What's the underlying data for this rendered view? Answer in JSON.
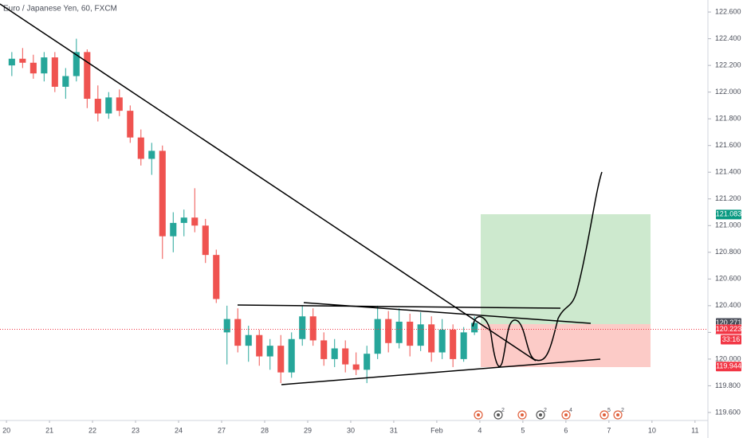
{
  "chart_data": {
    "type": "candlestick",
    "title": "Euro / Japanese Yen, 60, FXCM",
    "xlim": [
      -0.15,
      16.3
    ],
    "ylim": [
      119.54,
      122.69
    ],
    "xticks": [
      {
        "value": 0,
        "label": "20"
      },
      {
        "value": 1,
        "label": "21"
      },
      {
        "value": 2,
        "label": "22"
      },
      {
        "value": 3,
        "label": "23"
      },
      {
        "value": 4,
        "label": "24"
      },
      {
        "value": 5,
        "label": "27"
      },
      {
        "value": 6,
        "label": "28"
      },
      {
        "value": 7,
        "label": "29"
      },
      {
        "value": 8,
        "label": "30"
      },
      {
        "value": 9,
        "label": "31"
      },
      {
        "value": 10,
        "label": "Feb"
      },
      {
        "value": 11,
        "label": "4"
      },
      {
        "value": 12,
        "label": "5"
      },
      {
        "value": 13,
        "label": "6"
      },
      {
        "value": 14,
        "label": "7"
      },
      {
        "value": 15,
        "label": "10"
      },
      {
        "value": 16,
        "label": "11"
      }
    ],
    "yticks": [
      {
        "value": 119.6,
        "label": "119.600"
      },
      {
        "value": 119.8,
        "label": "119.800"
      },
      {
        "value": 120.0,
        "label": "120.000"
      },
      {
        "value": 120.2,
        "label": "120.200"
      },
      {
        "value": 120.4,
        "label": "120.400"
      },
      {
        "value": 120.6,
        "label": "120.600"
      },
      {
        "value": 120.8,
        "label": "120.800"
      },
      {
        "value": 121.0,
        "label": "121.000"
      },
      {
        "value": 121.2,
        "label": "121.200"
      },
      {
        "value": 121.4,
        "label": "121.400"
      },
      {
        "value": 121.6,
        "label": "121.600"
      },
      {
        "value": 121.8,
        "label": "121.800"
      },
      {
        "value": 122.0,
        "label": "122.000"
      },
      {
        "value": 122.2,
        "label": "122.200"
      },
      {
        "value": 122.4,
        "label": "122.400"
      },
      {
        "value": 122.6,
        "label": "122.600"
      }
    ],
    "up_color": "#26a69a",
    "down_color": "#ef5350",
    "x": [
      0.125,
      0.375,
      0.625,
      0.875,
      1.125,
      1.375,
      1.625,
      1.875,
      2.125,
      2.375,
      2.625,
      2.875,
      3.125,
      3.375,
      3.625,
      3.875,
      4.125,
      4.375,
      4.625,
      4.875,
      5.125,
      5.375,
      5.625,
      5.875,
      6.125,
      6.375,
      6.625,
      6.875,
      7.125,
      7.375,
      7.625,
      7.875,
      8.125,
      8.375,
      8.625,
      8.875,
      9.125,
      9.375,
      9.625,
      9.875,
      10.125,
      10.375,
      10.625,
      10.875
    ],
    "open": [
      122.2,
      122.25,
      122.22,
      122.14,
      122.26,
      122.04,
      122.12,
      122.3,
      121.95,
      121.84,
      121.96,
      121.86,
      121.66,
      121.5,
      121.56,
      120.92,
      121.02,
      121.06,
      121.0,
      120.78,
      120.2,
      120.3,
      120.1,
      120.18,
      120.02,
      120.1,
      119.9,
      120.15,
      120.32,
      120.14,
      120.0,
      120.08,
      119.96,
      119.92,
      120.04,
      120.3,
      120.12,
      120.28,
      120.1,
      120.26,
      120.05,
      120.22,
      120.0,
      120.2
    ],
    "high": [
      122.3,
      122.33,
      122.28,
      122.3,
      122.3,
      122.18,
      122.4,
      122.32,
      122.05,
      122.0,
      122.02,
      121.9,
      121.72,
      121.62,
      121.6,
      121.1,
      121.12,
      121.28,
      121.05,
      120.82,
      120.4,
      120.38,
      120.25,
      120.22,
      120.15,
      120.18,
      120.2,
      120.4,
      120.38,
      120.2,
      120.15,
      120.14,
      120.05,
      120.1,
      120.4,
      120.36,
      120.38,
      120.34,
      120.35,
      120.32,
      120.3,
      120.26,
      120.24,
      120.32
    ],
    "low": [
      122.12,
      122.18,
      122.1,
      122.08,
      122.0,
      121.95,
      122.08,
      121.88,
      121.78,
      121.8,
      121.82,
      121.62,
      121.45,
      121.38,
      120.75,
      120.8,
      120.92,
      120.95,
      120.72,
      120.42,
      119.96,
      120.05,
      119.98,
      119.95,
      119.92,
      119.82,
      119.86,
      120.1,
      120.1,
      119.95,
      119.94,
      119.9,
      119.88,
      119.82,
      120.0,
      120.05,
      120.08,
      120.02,
      120.06,
      119.98,
      120.0,
      119.94,
      119.98,
      120.18
    ],
    "close": [
      122.25,
      122.22,
      122.14,
      122.26,
      122.04,
      122.12,
      122.3,
      121.95,
      121.84,
      121.96,
      121.86,
      121.66,
      121.5,
      121.56,
      120.92,
      121.02,
      121.06,
      121.0,
      120.78,
      120.45,
      120.3,
      120.1,
      120.18,
      120.02,
      120.1,
      119.9,
      120.15,
      120.32,
      120.14,
      120.0,
      120.08,
      119.96,
      119.92,
      120.04,
      120.3,
      120.12,
      120.28,
      120.1,
      120.26,
      120.05,
      120.22,
      120.0,
      120.2,
      120.271
    ],
    "current_price": 120.223,
    "countdown": "33:16",
    "price_labels": [
      {
        "value": 121.083,
        "label": "121.083",
        "color": "#089981"
      },
      {
        "value": 120.271,
        "label": "120.271",
        "color": "#4a4e59"
      },
      {
        "value": 120.223,
        "label": "120.223",
        "color": "#f23645"
      },
      {
        "value": 119.944,
        "label": "119.944",
        "color": "#f23645"
      }
    ],
    "event_counts": [
      "2",
      "2",
      "4",
      "5",
      "2"
    ]
  }
}
